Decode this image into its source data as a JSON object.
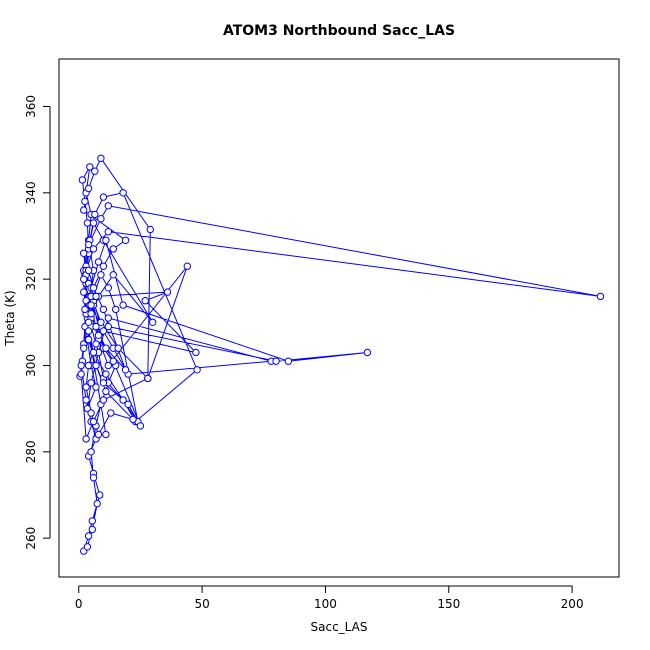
{
  "chart_data": {
    "type": "line",
    "title": "ATOM3 Northbound Sacc_LAS",
    "xlabel": "Sacc_LAS",
    "ylabel": "Theta (K)",
    "xlim": [
      -8,
      219
    ],
    "ylim": [
      251,
      371
    ],
    "xticks": [
      0,
      50,
      100,
      150,
      200
    ],
    "yticks": [
      260,
      280,
      300,
      320,
      340,
      360
    ],
    "grid": false,
    "legend": "none",
    "line_color": "#0000ff",
    "marker": "open-circle",
    "series": [
      {
        "x": [
          0.5,
          1.5,
          2.5,
          3.0,
          4.0,
          3.5,
          2.5,
          1.5,
          4.5,
          3.0,
          5.0,
          4.0,
          6.0,
          4.5,
          3.5,
          2.0,
          1.0,
          3.0,
          5.0,
          7.0,
          4.0,
          6.0,
          8.5,
          5.5,
          4.0,
          2.0,
          3.5,
          5.5,
          7.5,
          6.0,
          5.0,
          7.0,
          9.0,
          12.0,
          15.0,
          10.0,
          8.0,
          6.0,
          4.0,
          3.0,
          4.5,
          6.5,
          10.0,
          18.0,
          48.0,
          23.0,
          18.0,
          10.0,
          8.0,
          5.0,
          3.0,
          2.5,
          4.0,
          6.0,
          10.0,
          30.0,
          14.0,
          8.0,
          5.0,
          3.5,
          5.0,
          7.0,
          3.5,
          5.0,
          8.0,
          12.0,
          78.0,
          20.0,
          14.0,
          9.0,
          6.0,
          2.0,
          4.0,
          9.0,
          12.0,
          211.5,
          12.0,
          6.0,
          3.0,
          2.0,
          5.0,
          8.0,
          12.0,
          44.0,
          28.0,
          10.0,
          6.0,
          3.0,
          1.0,
          2.0,
          4.0,
          6.0,
          9.0,
          12.0,
          15.0,
          24.0,
          20.0,
          10.0,
          7.0,
          4.0,
          3.0,
          5.0,
          8.0,
          11.0,
          18.0,
          85.0,
          117.0,
          80.0,
          12.0,
          7.0,
          4.0,
          3.0,
          5.0,
          8.0,
          13.0,
          22.0,
          11.0,
          7.0,
          4.0,
          3.0,
          6.0,
          10.0,
          14.0,
          19.0,
          2.0,
          4.0,
          6.5,
          9.0,
          29.0,
          28.0,
          16.0,
          9.0,
          5.0,
          3.0,
          2.0,
          4.0,
          6.0,
          10.0,
          19.0,
          11.0,
          7.0,
          4.5,
          8.0,
          14.0,
          25.0,
          11.0,
          6.0,
          4.0,
          5.0,
          7.0,
          36.0,
          27.0,
          47.5,
          10.0,
          5.0,
          2.0,
          2.5,
          11.0
        ],
        "y": [
          297.5,
          301.0,
          309.0,
          319.0,
          326.0,
          333.0,
          338.0,
          343.0,
          346.0,
          340.0,
          335.0,
          329.0,
          322.0,
          316.0,
          311.0,
          305.0,
          300.0,
          292.0,
          287.0,
          283.0,
          279.0,
          275.0,
          270.0,
          264.0,
          260.5,
          257.0,
          258.0,
          262.0,
          268.0,
          274.0,
          280.0,
          286.0,
          291.0,
          296.0,
          300.0,
          304.0,
          309.0,
          314.0,
          319.0,
          323.0,
          329.0,
          335.0,
          339.0,
          340.0,
          299.0,
          287.0,
          292.0,
          297.0,
          303.0,
          309.0,
          315.0,
          321.0,
          327.0,
          333.0,
          329.0,
          310.0,
          321.0,
          316.0,
          311.0,
          306.0,
          300.0,
          295.0,
          290.0,
          296.0,
          303.0,
          311.0,
          301.0,
          298.0,
          304.0,
          309.0,
          315.0,
          322.0,
          328.0,
          334.0,
          337.0,
          316.0,
          331.0,
          327.0,
          322.0,
          317.0,
          312.0,
          306.0,
          300.0,
          323.0,
          297.0,
          292.0,
          287.0,
          283.0,
          298.0,
          304.0,
          310.0,
          316.0,
          321.0,
          318.0,
          313.0,
          287.0,
          291.0,
          296.0,
          300.0,
          306.0,
          312.0,
          318.0,
          324.0,
          329.0,
          314.0,
          301.0,
          303.0,
          301.0,
          309.0,
          305.0,
          300.0,
          295.0,
          289.0,
          284.0,
          289.0,
          287.5,
          294.0,
          300.0,
          306.0,
          312.0,
          318.0,
          323.0,
          327.0,
          329.0,
          336.0,
          341.0,
          345.0,
          348.0,
          331.5,
          297.0,
          304.0,
          310.0,
          316.0,
          321.0,
          326.0,
          322.0,
          318.0,
          313.0,
          299.0,
          304.0,
          309.0,
          314.0,
          307.0,
          301.0,
          286.0,
          298.0,
          303.0,
          308.0,
          312.0,
          316.0,
          317.0,
          315.0,
          303.0,
          308.0,
          314.0,
          320.0,
          313.0,
          284.0
        ]
      }
    ]
  }
}
